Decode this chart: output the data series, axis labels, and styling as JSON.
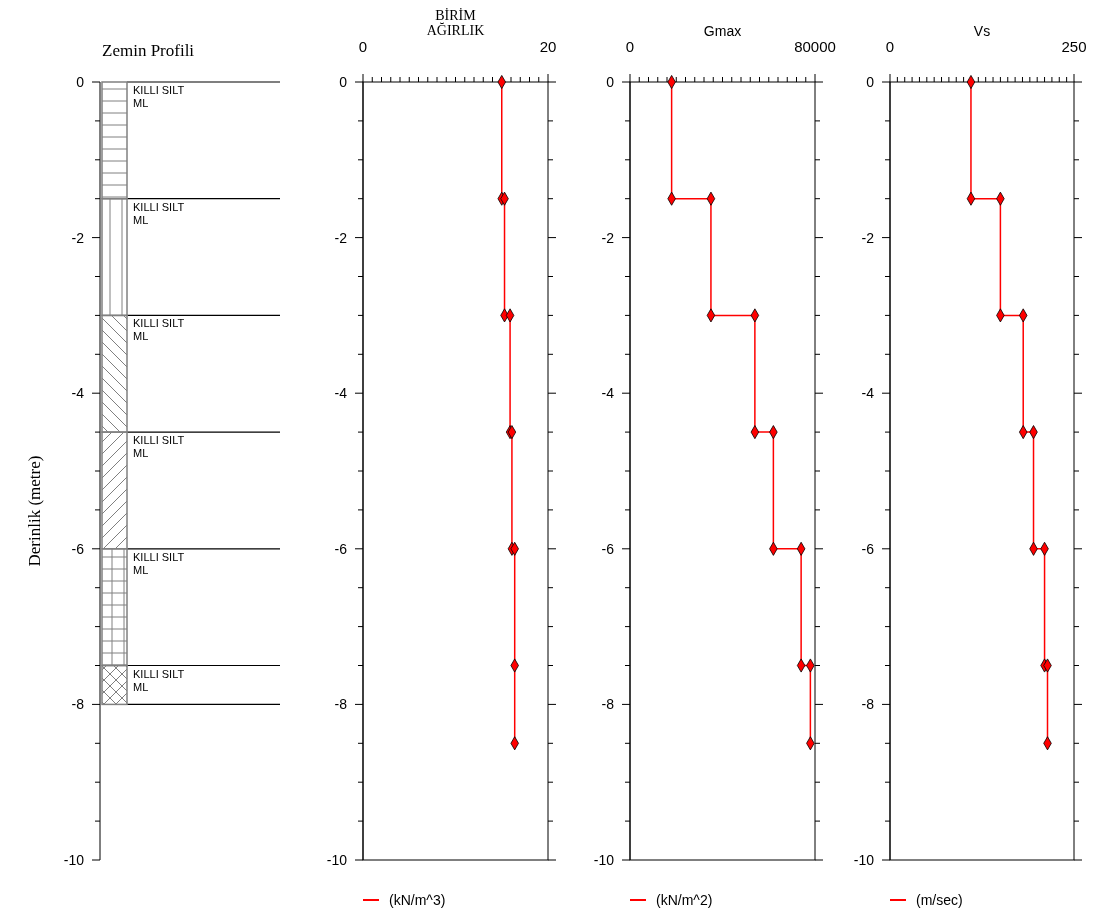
{
  "chart_data": [
    {
      "type": "bar",
      "title": "Zemin Profili",
      "ylabel": "Derinlik (metre)",
      "categories": [
        null
      ],
      "stacked": true,
      "ylim": [
        -10,
        0
      ],
      "yticks": [
        0,
        {
          "value": -0.5,
          "label": null
        },
        {
          "value": -1,
          "label": null
        },
        {
          "value": -1.5,
          "label": null
        },
        -2,
        {
          "value": -2.5,
          "label": null
        },
        {
          "value": -3,
          "label": null
        },
        {
          "value": -3.5,
          "label": null
        },
        -4,
        {
          "value": -4.5,
          "label": null
        },
        {
          "value": -5,
          "label": null
        },
        {
          "value": -5.5,
          "label": null
        },
        -6,
        {
          "value": -6.5,
          "label": null
        },
        {
          "value": -7,
          "label": null
        },
        {
          "value": -7.5,
          "label": null
        },
        -8,
        {
          "value": -8.5,
          "label": null
        },
        {
          "value": -9,
          "label": null
        },
        {
          "value": -9.5,
          "label": null
        },
        -10
      ],
      "series": [
        {
          "name": "KILLI SILT\nML",
          "color": "#808080",
          "values": [
            -1.5
          ]
        },
        {
          "name": "KILLI SILT\nML",
          "color": "#808080",
          "values": [
            -1.5
          ]
        },
        {
          "name": "KILLI SILT\nML",
          "color": "#808080",
          "values": [
            -1.5
          ]
        },
        {
          "name": "KILLI SILT\nML",
          "color": "#808080",
          "values": [
            -1.5
          ]
        },
        {
          "name": "KILLI SILT\nML",
          "color": "#808080",
          "values": [
            -1.5
          ]
        },
        {
          "name": "KILLI SILT\nML",
          "color": "#808080",
          "values": [
            -0.5
          ]
        }
      ]
    },
    {
      "type": "line",
      "title": "BİRİM\nAĞIRLIK",
      "legend": "bottom",
      "marker": "diamond",
      "xlim": [
        0,
        20
      ],
      "xticks": [
        0,
        {
          "value": 1,
          "label": null
        },
        {
          "value": 2,
          "label": null
        },
        {
          "value": 3,
          "label": null
        },
        {
          "value": 4,
          "label": null
        },
        {
          "value": 5,
          "label": null
        },
        {
          "value": 6,
          "label": null
        },
        {
          "value": 7,
          "label": null
        },
        {
          "value": 8,
          "label": null
        },
        {
          "value": 9,
          "label": null
        },
        {
          "value": 10,
          "label": null
        },
        {
          "value": 11,
          "label": null
        },
        {
          "value": 12,
          "label": null
        },
        {
          "value": 13,
          "label": null
        },
        {
          "value": 14,
          "label": null
        },
        {
          "value": 15,
          "label": null
        },
        {
          "value": 16,
          "label": null
        },
        {
          "value": 17,
          "label": null
        },
        {
          "value": 18,
          "label": null
        },
        {
          "value": 19,
          "label": null
        },
        20
      ],
      "ylim": [
        -10,
        0
      ],
      "yticks": [
        0,
        {
          "value": -0.5,
          "label": null
        },
        {
          "value": -1,
          "label": null
        },
        {
          "value": -1.5,
          "label": null
        },
        -2,
        {
          "value": -2.5,
          "label": null
        },
        {
          "value": -3,
          "label": null
        },
        {
          "value": -3.5,
          "label": null
        },
        -4,
        {
          "value": -4.5,
          "label": null
        },
        {
          "value": -5,
          "label": null
        },
        {
          "value": -5.5,
          "label": null
        },
        -6,
        {
          "value": -6.5,
          "label": null
        },
        {
          "value": -7,
          "label": null
        },
        {
          "value": -7.5,
          "label": null
        },
        -8,
        {
          "value": -8.5,
          "label": null
        },
        {
          "value": -9,
          "label": null
        },
        {
          "value": -9.5,
          "label": null
        },
        -10
      ],
      "series": [
        {
          "name": "(kN/m^3)",
          "color": "#ff0000",
          "x": [
            15.0,
            15.0,
            15.3,
            15.3,
            15.9,
            15.9,
            16.1,
            16.1,
            16.4,
            16.4,
            16.4
          ],
          "values": [
            0,
            -1.5,
            -1.5,
            -3,
            -3,
            -4.5,
            -4.5,
            -6,
            -6,
            -7.5,
            -8.5
          ]
        }
      ]
    },
    {
      "type": "line",
      "title": "Gmax",
      "legend": "bottom",
      "marker": "diamond",
      "xlim": [
        0,
        80000
      ],
      "xticks": [
        0,
        {
          "value": 4000,
          "label": null
        },
        {
          "value": 8000,
          "label": null
        },
        {
          "value": 12000,
          "label": null
        },
        {
          "value": 16000,
          "label": null
        },
        {
          "value": 20000,
          "label": null
        },
        {
          "value": 24000,
          "label": null
        },
        {
          "value": 28000,
          "label": null
        },
        {
          "value": 32000,
          "label": null
        },
        {
          "value": 36000,
          "label": null
        },
        {
          "value": 40000,
          "label": null
        },
        {
          "value": 44000,
          "label": null
        },
        {
          "value": 48000,
          "label": null
        },
        {
          "value": 52000,
          "label": null
        },
        {
          "value": 56000,
          "label": null
        },
        {
          "value": 60000,
          "label": null
        },
        {
          "value": 64000,
          "label": null
        },
        {
          "value": 68000,
          "label": null
        },
        {
          "value": 72000,
          "label": null
        },
        {
          "value": 76000,
          "label": null
        },
        80000
      ],
      "ylim": [
        -10,
        0
      ],
      "yticks": [
        0,
        {
          "value": -0.5,
          "label": null
        },
        {
          "value": -1,
          "label": null
        },
        {
          "value": -1.5,
          "label": null
        },
        -2,
        {
          "value": -2.5,
          "label": null
        },
        {
          "value": -3,
          "label": null
        },
        {
          "value": -3.5,
          "label": null
        },
        -4,
        {
          "value": -4.5,
          "label": null
        },
        {
          "value": -5,
          "label": null
        },
        {
          "value": -5.5,
          "label": null
        },
        -6,
        {
          "value": -6.5,
          "label": null
        },
        {
          "value": -7,
          "label": null
        },
        {
          "value": -7.5,
          "label": null
        },
        -8,
        {
          "value": -8.5,
          "label": null
        },
        {
          "value": -9,
          "label": null
        },
        {
          "value": -9.5,
          "label": null
        },
        -10
      ],
      "series": [
        {
          "name": "(kN/m^2)",
          "color": "#ff0000",
          "x": [
            18000,
            18000,
            35000,
            35000,
            54000,
            54000,
            62000,
            62000,
            74000,
            74000,
            78000,
            78000
          ],
          "values": [
            0,
            -1.5,
            -1.5,
            -3,
            -3,
            -4.5,
            -4.5,
            -6,
            -6,
            -7.5,
            -7.5,
            -8.5
          ]
        }
      ]
    },
    {
      "type": "line",
      "title": "Vs",
      "legend": "bottom",
      "marker": "diamond",
      "xlim": [
        0,
        250
      ],
      "xticks": [
        0,
        {
          "value": 10,
          "label": null
        },
        {
          "value": 20,
          "label": null
        },
        {
          "value": 30,
          "label": null
        },
        {
          "value": 40,
          "label": null
        },
        {
          "value": 50,
          "label": null
        },
        {
          "value": 60,
          "label": null
        },
        {
          "value": 70,
          "label": null
        },
        {
          "value": 80,
          "label": null
        },
        {
          "value": 90,
          "label": null
        },
        {
          "value": 100,
          "label": null
        },
        {
          "value": 110,
          "label": null
        },
        {
          "value": 120,
          "label": null
        },
        {
          "value": 130,
          "label": null
        },
        {
          "value": 140,
          "label": null
        },
        {
          "value": 150,
          "label": null
        },
        {
          "value": 160,
          "label": null
        },
        {
          "value": 170,
          "label": null
        },
        {
          "value": 180,
          "label": null
        },
        {
          "value": 190,
          "label": null
        },
        {
          "value": 200,
          "label": null
        },
        {
          "value": 210,
          "label": null
        },
        {
          "value": 220,
          "label": null
        },
        {
          "value": 230,
          "label": null
        },
        {
          "value": 240,
          "label": null
        },
        250
      ],
      "ylim": [
        -10,
        0
      ],
      "yticks": [
        0,
        {
          "value": -0.5,
          "label": null
        },
        {
          "value": -1,
          "label": null
        },
        {
          "value": -1.5,
          "label": null
        },
        -2,
        {
          "value": -2.5,
          "label": null
        },
        {
          "value": -3,
          "label": null
        },
        {
          "value": -3.5,
          "label": null
        },
        -4,
        {
          "value": -4.5,
          "label": null
        },
        {
          "value": -5,
          "label": null
        },
        {
          "value": -5.5,
          "label": null
        },
        -6,
        {
          "value": -6.5,
          "label": null
        },
        {
          "value": -7,
          "label": null
        },
        {
          "value": -7.5,
          "label": null
        },
        -8,
        {
          "value": -8.5,
          "label": null
        },
        {
          "value": -9,
          "label": null
        },
        {
          "value": -9.5,
          "label": null
        },
        -10
      ],
      "series": [
        {
          "name": "(m/sec)",
          "color": "#ff0000",
          "x": [
            110,
            110,
            150,
            150,
            181,
            181,
            195,
            195,
            210,
            210,
            214,
            214
          ],
          "values": [
            0,
            -1.5,
            -1.5,
            -3,
            -3,
            -4.5,
            -4.5,
            -6,
            -6,
            -7.5,
            -7.5,
            -8.5
          ]
        }
      ]
    }
  ]
}
